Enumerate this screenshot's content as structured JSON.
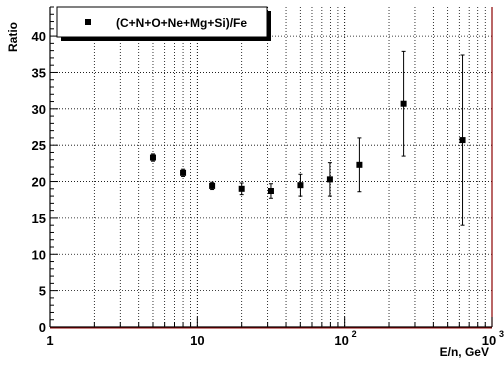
{
  "chart_data": {
    "type": "scatter",
    "ylabel": "Ratio",
    "xlabel": "E/n, GeV",
    "x_scale": "log",
    "xlim": [
      1,
      1000
    ],
    "ylim": [
      0,
      44
    ],
    "grid": true,
    "legend_position": "top-left",
    "x_ticks": [
      {
        "base": "1",
        "exp": ""
      },
      {
        "base": "10",
        "exp": ""
      },
      {
        "base": "10",
        "exp": "2"
      },
      {
        "base": "10",
        "exp": "3"
      }
    ],
    "y_ticks": [
      "0",
      "5",
      "10",
      "15",
      "20",
      "25",
      "30",
      "35",
      "40"
    ],
    "series": [
      {
        "name": "(C+N+O+Ne+Mg+Si)/Fe",
        "marker": "square",
        "color": "#000000",
        "points": [
          {
            "x": 5.0,
            "y": 23.3,
            "yerr_low": 0.5,
            "yerr_high": 0.5
          },
          {
            "x": 8.0,
            "y": 21.2,
            "yerr_low": 0.5,
            "yerr_high": 0.5
          },
          {
            "x": 12.6,
            "y": 19.4,
            "yerr_low": 0.5,
            "yerr_high": 0.5
          },
          {
            "x": 20.0,
            "y": 19.0,
            "yerr_low": 0.8,
            "yerr_high": 0.8
          },
          {
            "x": 31.6,
            "y": 18.7,
            "yerr_low": 1.0,
            "yerr_high": 1.0
          },
          {
            "x": 50.1,
            "y": 19.5,
            "yerr_low": 1.5,
            "yerr_high": 1.5
          },
          {
            "x": 79.4,
            "y": 20.3,
            "yerr_low": 2.3,
            "yerr_high": 2.3
          },
          {
            "x": 125.9,
            "y": 22.3,
            "yerr_low": 3.7,
            "yerr_high": 3.7
          },
          {
            "x": 251.2,
            "y": 30.7,
            "yerr_low": 7.2,
            "yerr_high": 7.2
          },
          {
            "x": 631.0,
            "y": 25.7,
            "yerr_low": 11.7,
            "yerr_high": 11.7
          }
        ]
      }
    ]
  }
}
